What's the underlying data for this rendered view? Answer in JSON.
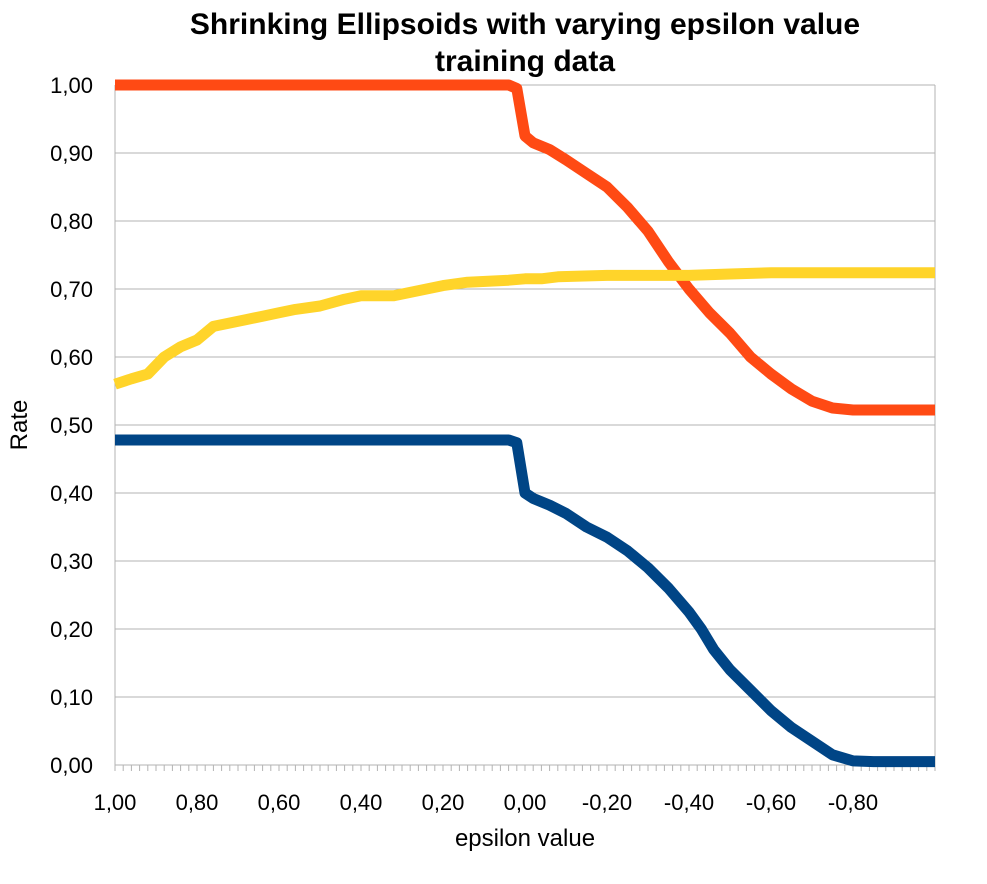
{
  "chart_data": {
    "type": "line",
    "title": "Shrinking Ellipsoids with varying epsilon value",
    "subtitle": "training data",
    "xlabel": "epsilon value",
    "ylabel": "Rate",
    "xlim": [
      1.0,
      -1.0
    ],
    "ylim": [
      0.0,
      1.0
    ],
    "x_reversed": true,
    "grid": "horizontal",
    "legend": "none",
    "yticks": [
      "0,00",
      "0,10",
      "0,20",
      "0,30",
      "0,40",
      "0,50",
      "0,60",
      "0,70",
      "0,80",
      "0,90",
      "1,00"
    ],
    "xticks": [
      "1,00",
      "0,80",
      "0,60",
      "0,40",
      "0,20",
      "0,00",
      "-0,20",
      "-0,40",
      "-0,60",
      "-0,80"
    ],
    "series": [
      {
        "color": "#ff4a14",
        "points": [
          [
            1.0,
            1.0
          ],
          [
            0.04,
            1.0
          ],
          [
            0.02,
            0.995
          ],
          [
            0.0,
            0.925
          ],
          [
            -0.02,
            0.915
          ],
          [
            -0.06,
            0.905
          ],
          [
            -0.1,
            0.89
          ],
          [
            -0.15,
            0.87
          ],
          [
            -0.2,
            0.85
          ],
          [
            -0.25,
            0.82
          ],
          [
            -0.3,
            0.785
          ],
          [
            -0.35,
            0.74
          ],
          [
            -0.4,
            0.7
          ],
          [
            -0.45,
            0.665
          ],
          [
            -0.5,
            0.635
          ],
          [
            -0.55,
            0.6
          ],
          [
            -0.6,
            0.575
          ],
          [
            -0.65,
            0.553
          ],
          [
            -0.7,
            0.535
          ],
          [
            -0.75,
            0.525
          ],
          [
            -0.8,
            0.522
          ],
          [
            -1.0,
            0.522
          ]
        ]
      },
      {
        "color": "#ffd42a",
        "points": [
          [
            1.0,
            0.56
          ],
          [
            0.96,
            0.568
          ],
          [
            0.92,
            0.575
          ],
          [
            0.88,
            0.6
          ],
          [
            0.84,
            0.615
          ],
          [
            0.8,
            0.625
          ],
          [
            0.76,
            0.645
          ],
          [
            0.72,
            0.65
          ],
          [
            0.68,
            0.655
          ],
          [
            0.64,
            0.66
          ],
          [
            0.6,
            0.665
          ],
          [
            0.56,
            0.67
          ],
          [
            0.5,
            0.675
          ],
          [
            0.44,
            0.685
          ],
          [
            0.4,
            0.69
          ],
          [
            0.36,
            0.69
          ],
          [
            0.32,
            0.69
          ],
          [
            0.28,
            0.695
          ],
          [
            0.24,
            0.7
          ],
          [
            0.2,
            0.705
          ],
          [
            0.14,
            0.71
          ],
          [
            0.04,
            0.713
          ],
          [
            0.0,
            0.715
          ],
          [
            -0.04,
            0.715
          ],
          [
            -0.08,
            0.718
          ],
          [
            -0.2,
            0.72
          ],
          [
            -0.4,
            0.72
          ],
          [
            -0.5,
            0.722
          ],
          [
            -0.6,
            0.724
          ],
          [
            -1.0,
            0.724
          ]
        ]
      },
      {
        "color": "#004586",
        "points": [
          [
            1.0,
            0.478
          ],
          [
            0.04,
            0.478
          ],
          [
            0.02,
            0.474
          ],
          [
            0.0,
            0.4
          ],
          [
            -0.02,
            0.392
          ],
          [
            -0.06,
            0.382
          ],
          [
            -0.1,
            0.37
          ],
          [
            -0.15,
            0.35
          ],
          [
            -0.2,
            0.335
          ],
          [
            -0.25,
            0.315
          ],
          [
            -0.3,
            0.29
          ],
          [
            -0.35,
            0.26
          ],
          [
            -0.4,
            0.225
          ],
          [
            -0.43,
            0.2
          ],
          [
            -0.46,
            0.17
          ],
          [
            -0.5,
            0.14
          ],
          [
            -0.55,
            0.11
          ],
          [
            -0.6,
            0.08
          ],
          [
            -0.65,
            0.055
          ],
          [
            -0.7,
            0.035
          ],
          [
            -0.75,
            0.015
          ],
          [
            -0.8,
            0.006
          ],
          [
            -0.85,
            0.005
          ],
          [
            -1.0,
            0.005
          ]
        ]
      }
    ]
  }
}
